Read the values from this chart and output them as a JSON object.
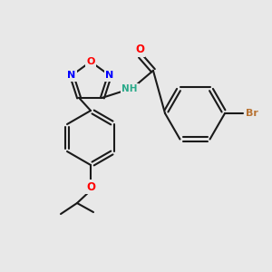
{
  "bg_color": "#e8e8e8",
  "bond_color": "#1a1a1a",
  "atom_colors": {
    "O": "#ff0000",
    "N": "#0000ff",
    "Br": "#b87333",
    "NH": "#2aaa8a",
    "C": "#1a1a1a"
  }
}
